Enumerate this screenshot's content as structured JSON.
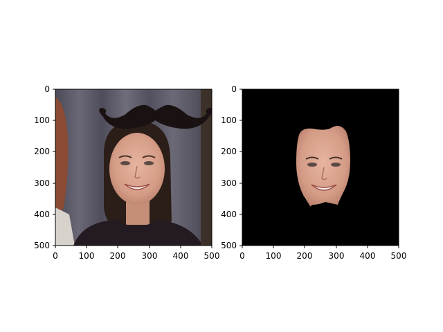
{
  "figure": {
    "panels": [
      {
        "name": "left-panel",
        "content": "photo of a smiling woman with dark hair against a grey curtain, a black cartoon mustache overlaid above her head",
        "xlim": [
          0,
          500
        ],
        "ylim": [
          0,
          500
        ],
        "x_ticks": [
          "0",
          "100",
          "200",
          "300",
          "400",
          "500"
        ],
        "y_ticks": [
          "0",
          "100",
          "200",
          "300",
          "400",
          "500"
        ]
      },
      {
        "name": "right-panel",
        "content": "same face cut out and shown on a black background",
        "xlim": [
          0,
          500
        ],
        "ylim": [
          0,
          500
        ],
        "x_ticks": [
          "0",
          "100",
          "200",
          "300",
          "400",
          "500"
        ],
        "y_ticks": [
          "0",
          "100",
          "200",
          "300",
          "400",
          "500"
        ]
      }
    ]
  },
  "colors": {
    "curtain": "#5a5866",
    "mustache": "#1a1212",
    "skin": "#d9a48e",
    "hair": "#2b1e18",
    "sweater": "#231a22",
    "background_black": "#000000"
  }
}
